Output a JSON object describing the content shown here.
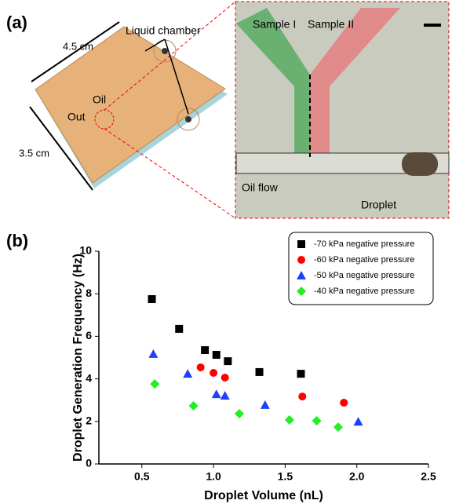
{
  "panel_a": {
    "label": "(a)",
    "liquid_chamber": "Liquid chamber",
    "width": "4.5 cm",
    "oil": "Oil",
    "out": "Out",
    "depth": "3.5 cm",
    "sample1": "Sample I",
    "sample2": "Sample II",
    "oil_flow": "Oil flow",
    "droplet": "Droplet"
  },
  "chart_data": {
    "type": "scatter",
    "panel_label": "(b)",
    "x_label": "Droplet Volume (nL)",
    "y_label": "Droplet Generation Frequency (Hz)",
    "xlim": [
      0.2,
      2.5
    ],
    "ylim": [
      0,
      10
    ],
    "xticks": [
      0.5,
      {
        "value": 1,
        "label": "1.0"
      },
      1.5,
      {
        "value": 2,
        "label": "2.0"
      },
      2.5
    ],
    "yticks": [
      0,
      2,
      4,
      6,
      8,
      10
    ],
    "legend": "upper right",
    "series": [
      {
        "name": "-70 kPa negative pressure",
        "color": "#000000",
        "marker": "square",
        "x": [
          0.57,
          0.76,
          0.94,
          1.02,
          1.1,
          1.32,
          1.61
        ],
        "values": [
          7.75,
          6.35,
          5.35,
          5.13,
          4.83,
          4.32,
          4.24
        ]
      },
      {
        "name": "-60 kPa negative pressure",
        "color": "#ff0000",
        "marker": "circle",
        "x": [
          0.91,
          1.0,
          1.08,
          1.62,
          1.91
        ],
        "values": [
          4.54,
          4.28,
          4.06,
          3.17,
          2.88
        ]
      },
      {
        "name": "-50 kPa negative pressure",
        "color": "#1f3fff",
        "marker": "triangle",
        "x": [
          0.58,
          0.82,
          1.02,
          1.08,
          1.36,
          2.01
        ],
        "values": [
          5.17,
          4.24,
          3.28,
          3.21,
          2.77,
          1.99
        ]
      },
      {
        "name": "-40 kPa negative pressure",
        "color": "#22ee22",
        "marker": "diamond",
        "x": [
          0.59,
          0.86,
          1.18,
          1.53,
          1.72,
          1.87
        ],
        "values": [
          3.76,
          2.73,
          2.36,
          2.07,
          2.03,
          1.73
        ]
      }
    ]
  }
}
